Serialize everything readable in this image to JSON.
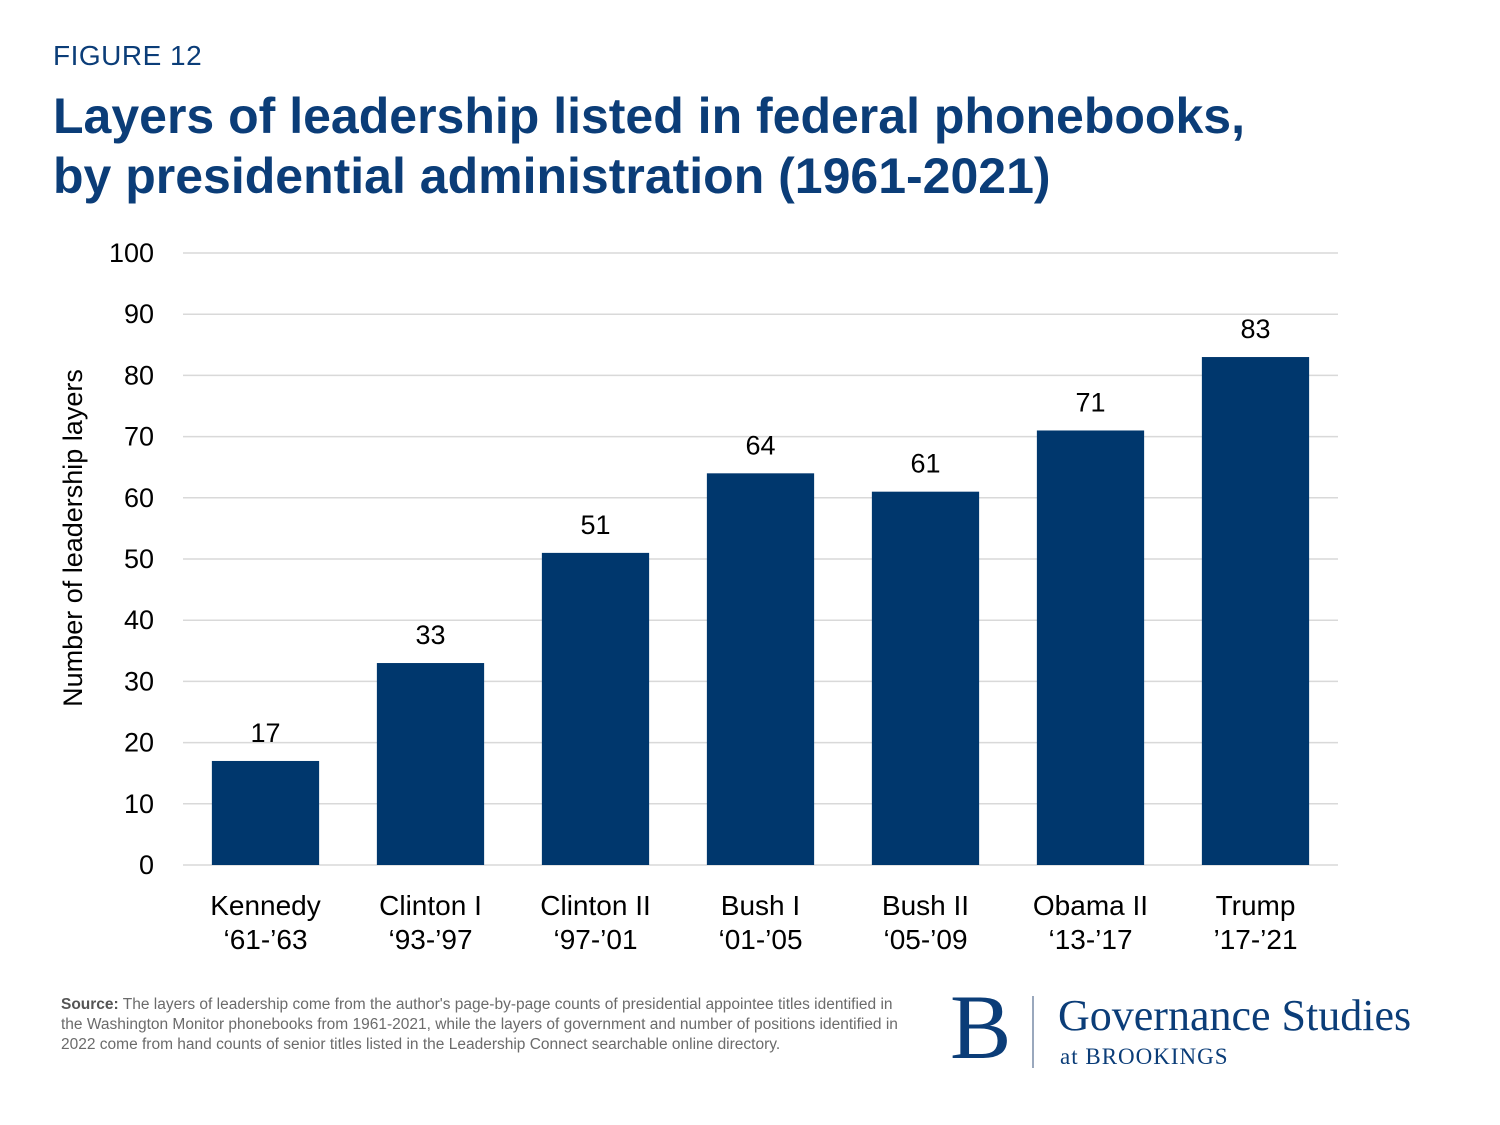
{
  "header": {
    "figure_label": "FIGURE 12",
    "title_line1": "Layers of leadership listed in federal phonebooks,",
    "title_line2": "by presidential administration (1961-2021)"
  },
  "colors": {
    "bar": "#00376d",
    "grid": "#d9d9d9",
    "text": "#000000",
    "brand": "#0b3d78"
  },
  "chart_data": {
    "type": "bar",
    "categories": [
      [
        "Kennedy",
        "‘61-’63"
      ],
      [
        "Clinton I",
        "‘93-’97"
      ],
      [
        "Clinton II",
        "‘97-’01"
      ],
      [
        "Bush I",
        "‘01-’05"
      ],
      [
        "Bush II",
        "‘05-’09"
      ],
      [
        "Obama II",
        "‘13-’17"
      ],
      [
        "Trump",
        "’17-’21"
      ]
    ],
    "values": [
      17,
      33,
      51,
      64,
      61,
      71,
      83
    ],
    "ylabel": "Number of leadership layers",
    "xlabel": "",
    "ylim": [
      0,
      100
    ],
    "yticks": [
      0,
      10,
      20,
      30,
      40,
      50,
      60,
      70,
      80,
      90,
      100
    ],
    "grid": true,
    "data_labels": true
  },
  "footer": {
    "source_label": "Source:",
    "source_text": " The layers of leadership come from the author's page-by-page counts of presidential appointee titles identified in the Washington Monitor phonebooks from 1961-2021, while the layers of government and number of positions identified in 2022 come from hand counts of senior titles listed in the Leadership Connect searchable online directory.",
    "logo_letter": "B",
    "logo_main": "Governance Studies",
    "logo_sub": "at BROOKINGS"
  }
}
